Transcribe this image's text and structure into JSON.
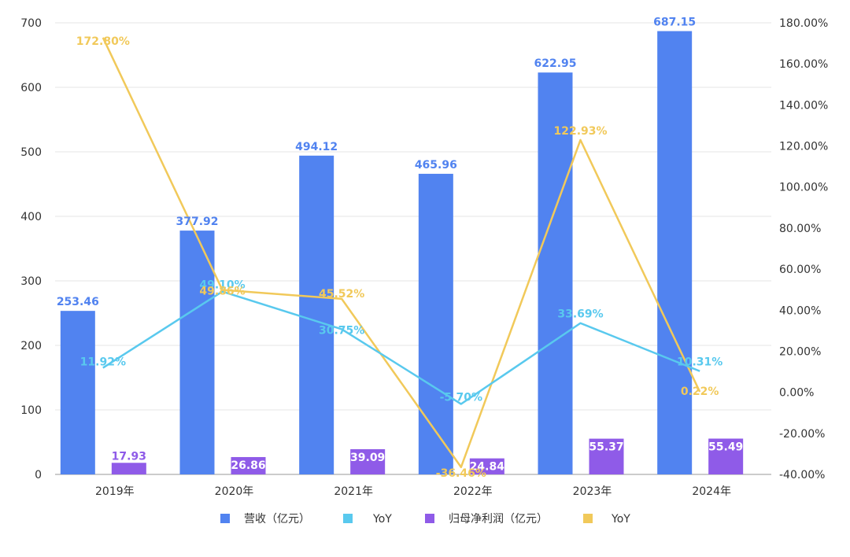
{
  "chart_data": {
    "type": "bar",
    "categories": [
      "2019年",
      "2020年",
      "2021年",
      "2022年",
      "2023年",
      "2024年"
    ],
    "series": [
      {
        "name": "营收（亿元）",
        "kind": "bar",
        "axis": "left",
        "color": "#5183F0",
        "values": [
          253.46,
          377.92,
          494.12,
          465.96,
          622.95,
          687.15
        ],
        "labels": [
          "253.46",
          "377.92",
          "494.12",
          "465.96",
          "622.95",
          "687.15"
        ]
      },
      {
        "name": "YoY",
        "kind": "line",
        "axis": "right",
        "color": "#59C9EE",
        "values": [
          11.92,
          49.1,
          30.75,
          -5.7,
          33.69,
          10.31
        ],
        "labels": [
          "11.92%",
          "49.10%",
          "30.75%",
          "-5.70%",
          "33.69%",
          "10.31%"
        ]
      },
      {
        "name": "归母净利润（亿元）",
        "kind": "bar",
        "axis": "left",
        "color": "#8F5BE8",
        "values": [
          17.93,
          26.86,
          39.09,
          24.84,
          55.37,
          55.49
        ],
        "labels": [
          "17.93",
          "26.86",
          "39.09",
          "24.84",
          "55.37",
          "55.49"
        ]
      },
      {
        "name": "YoY",
        "kind": "line",
        "axis": "right",
        "color": "#F1C95A",
        "values": [
          172.8,
          49.86,
          45.52,
          -36.46,
          122.93,
          0.22
        ],
        "labels": [
          "172.80%",
          "49.86%",
          "45.52%",
          "-36.46%",
          "122.93%",
          "0.22%"
        ]
      }
    ],
    "y_left": {
      "ylim": [
        0,
        700
      ],
      "ticks": [
        "0",
        "100",
        "200",
        "300",
        "400",
        "500",
        "600",
        "700"
      ]
    },
    "y_right": {
      "ylim": [
        -40,
        180
      ],
      "ticks": [
        "-40.00%",
        "-20.00%",
        "0.00%",
        "20.00%",
        "40.00%",
        "60.00%",
        "80.00%",
        "100.00%",
        "120.00%",
        "140.00%",
        "160.00%",
        "180.00%"
      ]
    },
    "grid": true,
    "legend_position": "bottom",
    "title": "",
    "xlabel": "",
    "ylabel": ""
  }
}
